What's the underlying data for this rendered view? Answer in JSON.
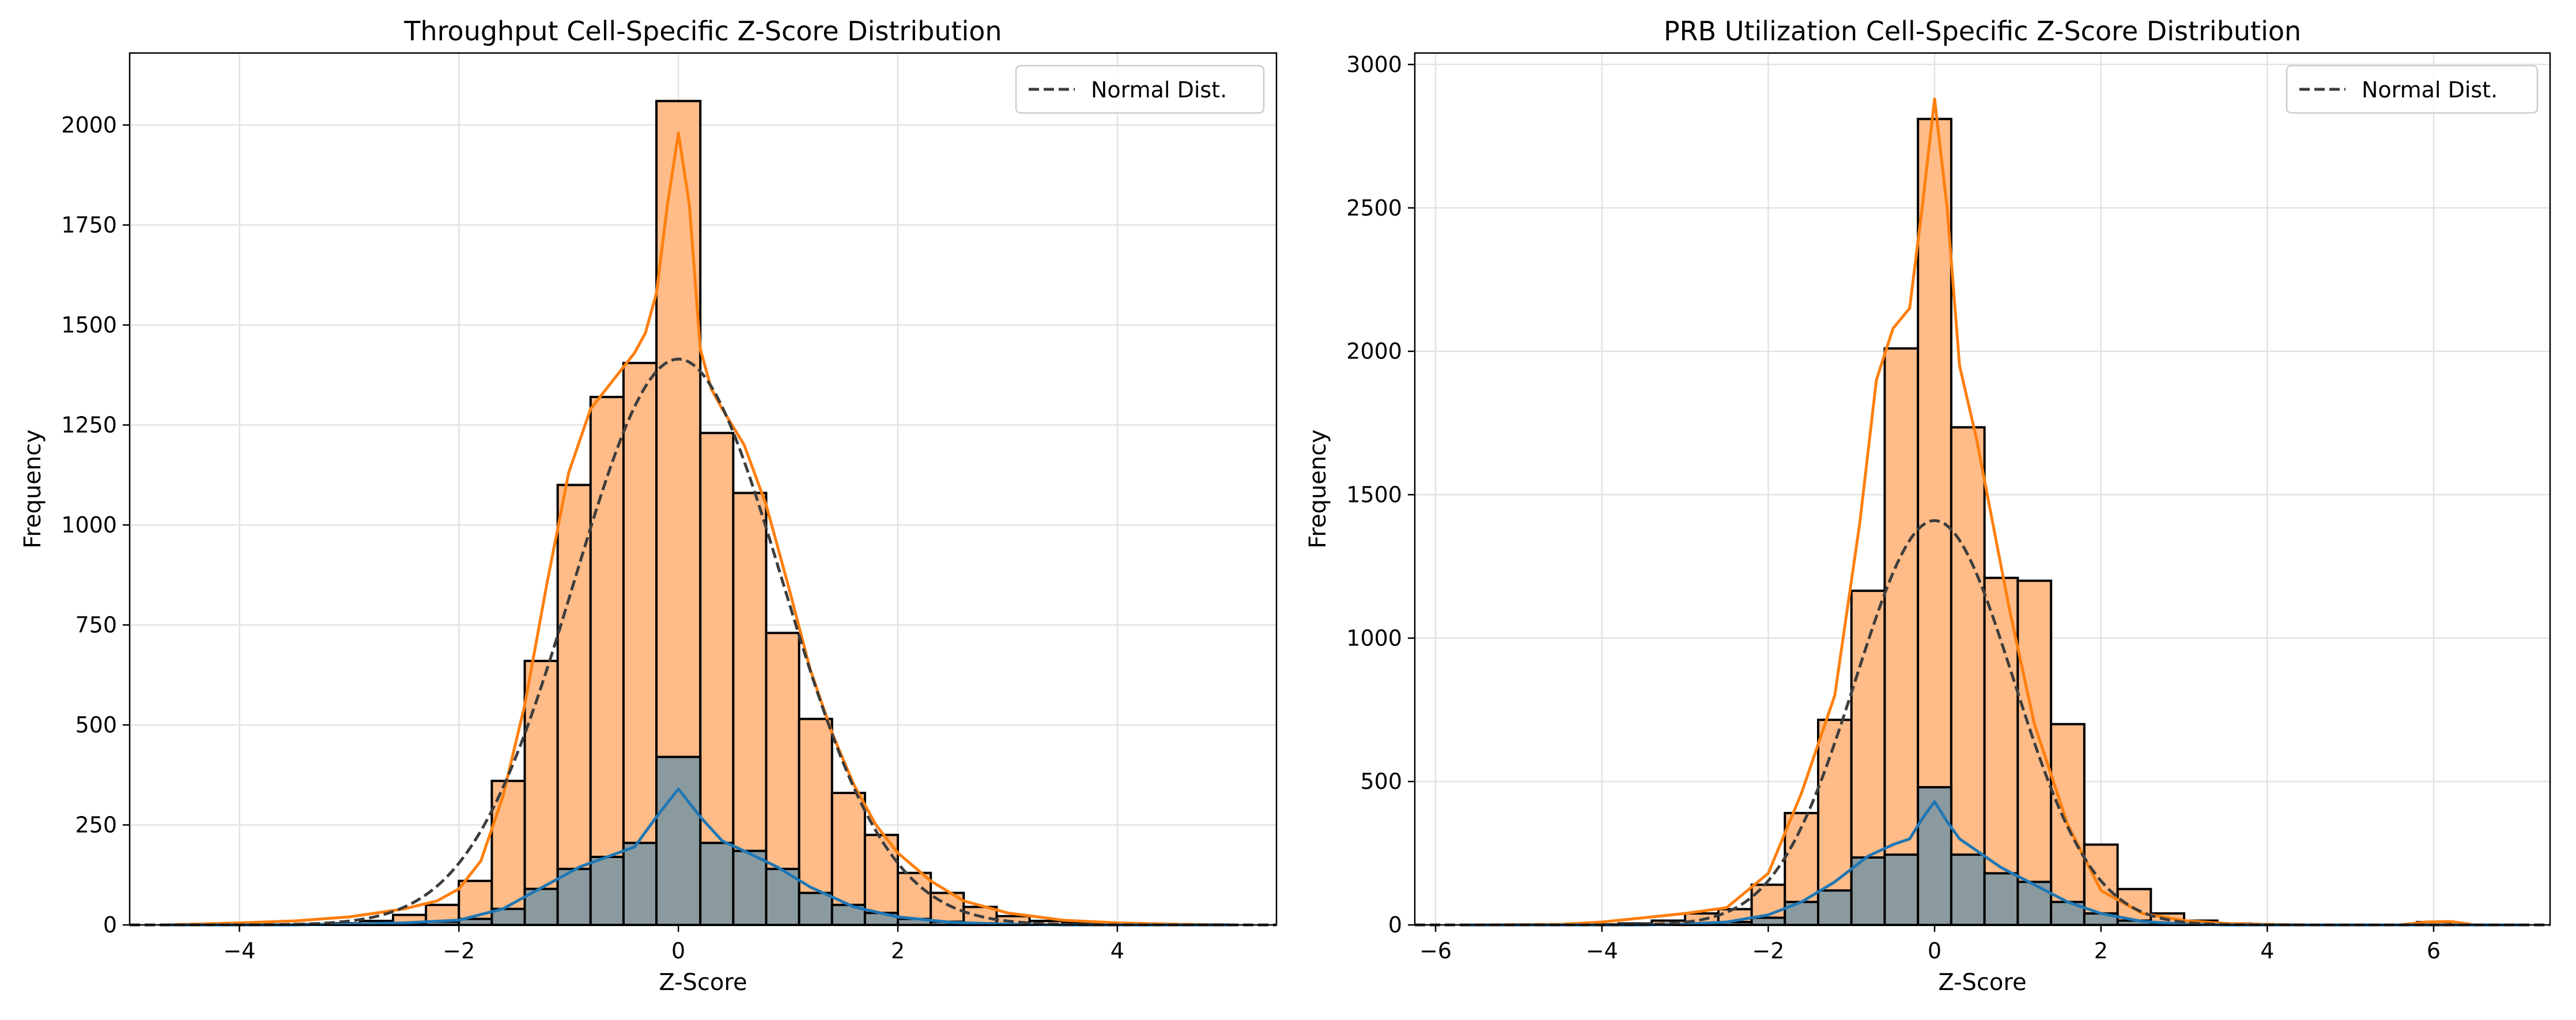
{
  "chart_data": [
    {
      "type": "bar",
      "title": "Throughput Cell-Specific Z-Score Distribution",
      "xlabel": "Z-Score",
      "ylabel": "Frequency",
      "xlim": [
        -5.0,
        5.45
      ],
      "ylim": [
        0,
        2180
      ],
      "xticks": [
        -4,
        -2,
        0,
        2,
        4
      ],
      "yticks": [
        0,
        250,
        500,
        750,
        1000,
        1250,
        1500,
        1750,
        2000
      ],
      "grid": true,
      "legend_position": "top-right",
      "legend_entries": [
        "Normal Dist."
      ],
      "bin_edges": [
        -4.7,
        -4.4,
        -4.1,
        -3.8,
        -3.5,
        -3.2,
        -2.9,
        -2.6,
        -2.3,
        -2.0,
        -1.7,
        -1.4,
        -1.1,
        -0.8,
        -0.5,
        -0.2,
        0.2,
        0.5,
        0.8,
        1.1,
        1.4,
        1.7,
        2.0,
        2.3,
        2.6,
        2.9,
        3.2,
        3.5,
        3.8,
        4.1,
        4.4,
        4.7,
        5.0
      ],
      "series": [
        {
          "values": [
            0,
            0,
            1,
            1,
            2,
            4,
            10,
            25,
            50,
            110,
            360,
            660,
            1100,
            1320,
            1405,
            2060,
            1230,
            1080,
            730,
            515,
            330,
            225,
            130,
            80,
            45,
            22,
            10,
            5,
            3,
            2,
            1,
            1
          ],
          "color": "#ffbb88"
        },
        {
          "values": [
            0,
            0,
            0,
            0,
            0,
            1,
            2,
            4,
            8,
            15,
            40,
            90,
            140,
            170,
            205,
            420,
            205,
            185,
            140,
            80,
            50,
            30,
            15,
            8,
            4,
            2,
            1,
            0,
            0,
            0,
            0,
            0
          ],
          "color": "#8b9a9e"
        }
      ],
      "kde": [
        {
          "x": [
            -4.7,
            -4.0,
            -3.5,
            -3.0,
            -2.5,
            -2.2,
            -2.0,
            -1.8,
            -1.6,
            -1.4,
            -1.2,
            -1.0,
            -0.8,
            -0.6,
            -0.4,
            -0.3,
            -0.2,
            -0.1,
            0.0,
            0.1,
            0.2,
            0.3,
            0.4,
            0.6,
            0.8,
            1.0,
            1.2,
            1.4,
            1.6,
            1.8,
            2.0,
            2.3,
            2.6,
            3.0,
            3.5,
            4.0,
            4.5,
            5.0
          ],
          "y": [
            0,
            5,
            10,
            20,
            40,
            60,
            90,
            160,
            320,
            550,
            850,
            1130,
            1290,
            1360,
            1430,
            1480,
            1580,
            1800,
            1980,
            1800,
            1440,
            1340,
            1290,
            1200,
            1050,
            850,
            640,
            480,
            350,
            250,
            180,
            110,
            60,
            30,
            12,
            5,
            2,
            0
          ],
          "color": "#ff7f0e"
        },
        {
          "x": [
            -4.7,
            -3.5,
            -3.0,
            -2.5,
            -2.0,
            -1.6,
            -1.2,
            -0.9,
            -0.6,
            -0.4,
            -0.2,
            0.0,
            0.2,
            0.4,
            0.6,
            0.9,
            1.2,
            1.6,
            2.0,
            2.5,
            3.0,
            3.5,
            5.0
          ],
          "y": [
            0,
            0,
            2,
            5,
            12,
            40,
            100,
            145,
            175,
            195,
            270,
            340,
            270,
            210,
            185,
            145,
            95,
            45,
            20,
            6,
            2,
            0,
            0
          ],
          "color": "#1f77b4"
        }
      ],
      "normal_curve": {
        "mean": 0.0,
        "peak": 1415,
        "sigma": 0.95
      }
    },
    {
      "type": "bar",
      "title": "PRB Utilization Cell-Specific Z-Score Distribution",
      "xlabel": "Z-Score",
      "ylabel": "Frequency",
      "xlim": [
        -6.25,
        7.4
      ],
      "ylim": [
        0,
        3040
      ],
      "xticks": [
        -6,
        -4,
        -2,
        0,
        2,
        4,
        6
      ],
      "yticks": [
        0,
        500,
        1000,
        1500,
        2000,
        2500,
        3000
      ],
      "grid": true,
      "legend_position": "top-right",
      "legend_entries": [
        "Normal Dist."
      ],
      "bin_edges": [
        -5.4,
        -5.0,
        -4.6,
        -4.2,
        -3.8,
        -3.4,
        -3.0,
        -2.6,
        -2.2,
        -1.8,
        -1.4,
        -1.0,
        -0.6,
        -0.2,
        0.2,
        0.6,
        1.0,
        1.4,
        1.8,
        2.2,
        2.6,
        3.0,
        3.4,
        3.8,
        4.2,
        4.6,
        5.0,
        5.4,
        5.8,
        6.2,
        6.6,
        7.0
      ],
      "series": [
        {
          "values": [
            0,
            0,
            0,
            2,
            5,
            15,
            40,
            55,
            140,
            390,
            715,
            1165,
            2010,
            2810,
            1735,
            1210,
            1200,
            700,
            280,
            125,
            40,
            15,
            5,
            2,
            1,
            0,
            0,
            0,
            10,
            0,
            0
          ],
          "color": "#ffbb88"
        },
        {
          "values": [
            0,
            0,
            0,
            0,
            0,
            2,
            5,
            10,
            25,
            80,
            120,
            235,
            245,
            480,
            245,
            180,
            150,
            80,
            40,
            15,
            5,
            2,
            0,
            0,
            0,
            0,
            0,
            0,
            0,
            0,
            0
          ],
          "color": "#8b9a9e"
        }
      ],
      "kde": [
        {
          "x": [
            -5.6,
            -4.5,
            -4.0,
            -3.5,
            -3.0,
            -2.5,
            -2.0,
            -1.6,
            -1.2,
            -0.9,
            -0.7,
            -0.5,
            -0.3,
            -0.15,
            0.0,
            0.15,
            0.3,
            0.5,
            0.7,
            0.9,
            1.2,
            1.6,
            2.0,
            2.5,
            3.0,
            3.5,
            4.0,
            4.5,
            5.0,
            5.6,
            5.9,
            6.2,
            6.5,
            7.1
          ],
          "y": [
            0,
            2,
            10,
            25,
            40,
            60,
            180,
            460,
            800,
            1400,
            1900,
            2080,
            2150,
            2500,
            2880,
            2500,
            1950,
            1700,
            1400,
            1100,
            700,
            350,
            120,
            40,
            15,
            5,
            2,
            0,
            0,
            0,
            10,
            12,
            0,
            0
          ],
          "color": "#ff7f0e"
        },
        {
          "x": [
            -5.6,
            -3.5,
            -3.0,
            -2.5,
            -2.0,
            -1.6,
            -1.2,
            -0.8,
            -0.5,
            -0.3,
            -0.15,
            0.0,
            0.15,
            0.3,
            0.5,
            0.8,
            1.2,
            1.6,
            2.0,
            2.5,
            3.0,
            3.5,
            7.1
          ],
          "y": [
            0,
            0,
            3,
            10,
            35,
            80,
            150,
            240,
            280,
            300,
            370,
            430,
            360,
            300,
            260,
            200,
            140,
            80,
            40,
            12,
            3,
            0,
            0
          ],
          "color": "#1f77b4"
        }
      ],
      "normal_curve": {
        "mean": 0.0,
        "peak": 1410,
        "sigma": 0.95
      }
    }
  ]
}
